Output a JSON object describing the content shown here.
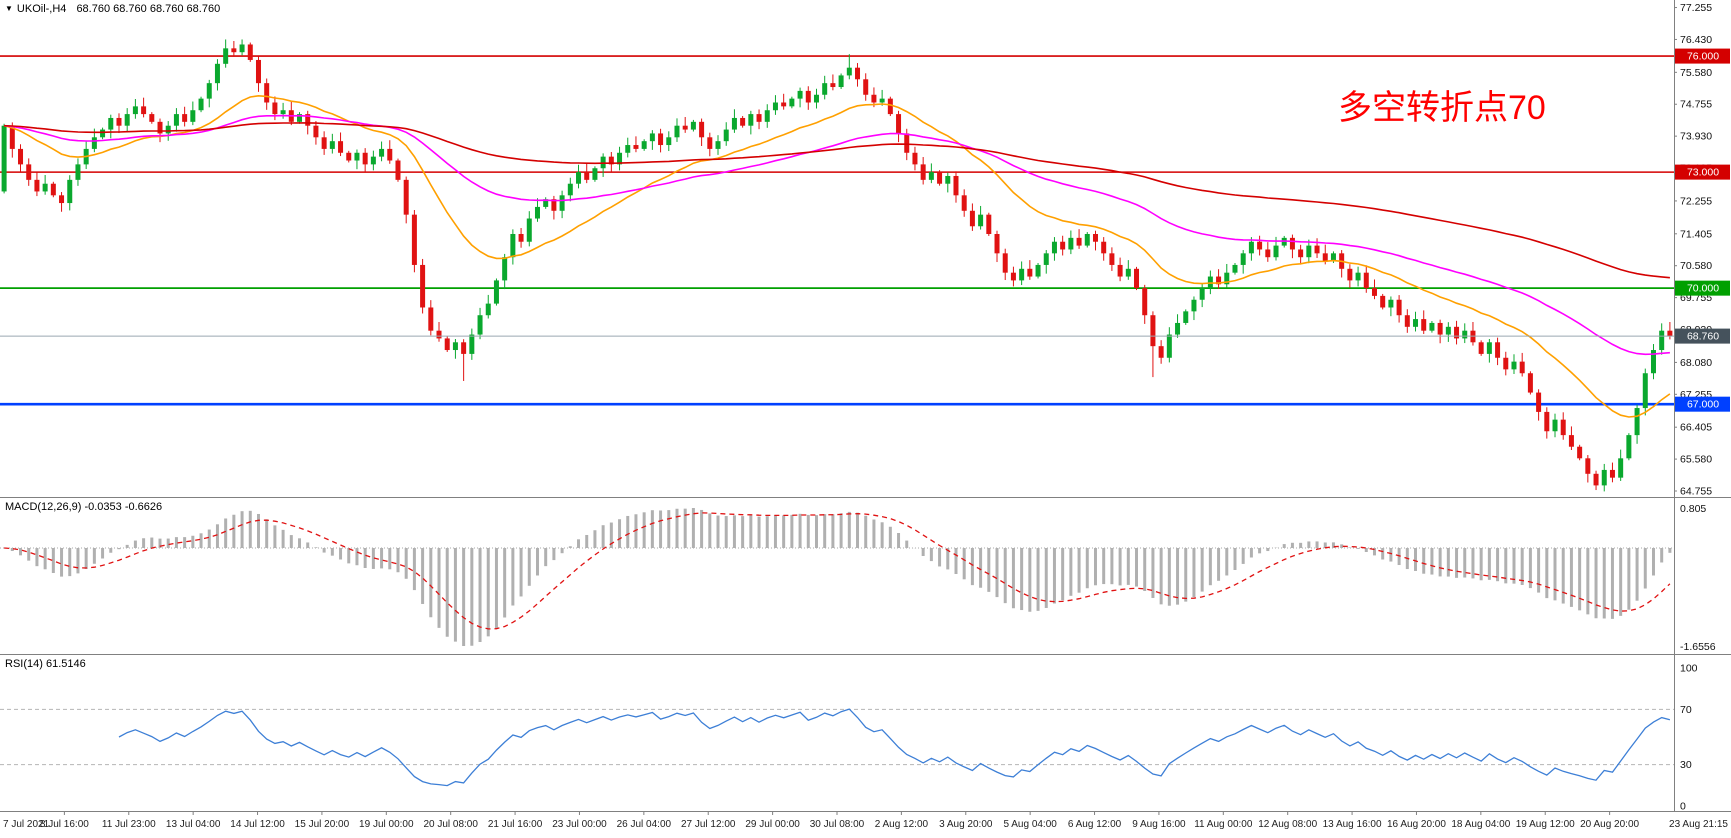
{
  "price_panel": {
    "symbol": "UKOil-,H4",
    "ohlc_text": "68.760 68.760 68.760 68.760",
    "annotation": "多空转折点70",
    "annotation_color": "#ff0000",
    "axis_labels": [
      "77.255",
      "76.430",
      "75.580",
      "74.755",
      "73.930",
      "73.105",
      "72.255",
      "71.405",
      "70.580",
      "69.755",
      "68.930",
      "68.080",
      "67.255",
      "66.405",
      "65.580",
      "64.755"
    ],
    "hlines": [
      {
        "value": 76.0,
        "label": "76.000",
        "color": "#d40000",
        "width": 1.6
      },
      {
        "value": 73.0,
        "label": "73.000",
        "color": "#d40000",
        "width": 1.6
      },
      {
        "value": 70.0,
        "label": "70.000",
        "color": "#00a000",
        "width": 1.8
      },
      {
        "value": 67.0,
        "label": "67.000",
        "color": "#0040ff",
        "width": 2.6
      }
    ],
    "bid": {
      "value": 68.76,
      "label": "68.760",
      "badge_color": "#45525c",
      "line_color": "#9aa7b0"
    }
  },
  "chart_data": {
    "type": "candlestick",
    "symbol": "UKOil-",
    "timeframe": "H4",
    "ylim": [
      64.6,
      77.45
    ],
    "first_open": 72.5,
    "up_color": "#0aa82e",
    "down_color": "#e01212",
    "closes": [
      74.2,
      73.6,
      73.2,
      72.8,
      72.5,
      72.7,
      72.4,
      72.2,
      72.8,
      73.2,
      73.6,
      73.9,
      74.1,
      74.4,
      74.2,
      74.5,
      74.7,
      74.5,
      74.3,
      74.0,
      74.2,
      74.5,
      74.3,
      74.6,
      74.9,
      75.3,
      75.8,
      76.2,
      76.1,
      76.3,
      75.9,
      75.3,
      74.8,
      74.5,
      74.6,
      74.3,
      74.5,
      74.2,
      73.9,
      73.6,
      73.8,
      73.5,
      73.3,
      73.5,
      73.2,
      73.4,
      73.6,
      73.3,
      72.8,
      71.9,
      70.6,
      69.5,
      68.9,
      68.7,
      68.4,
      68.6,
      68.3,
      68.8,
      69.3,
      69.6,
      70.2,
      70.8,
      71.4,
      71.2,
      71.8,
      72.1,
      72.3,
      72.0,
      72.4,
      72.7,
      73.0,
      72.8,
      73.1,
      73.4,
      73.2,
      73.5,
      73.7,
      73.6,
      73.8,
      74.0,
      73.7,
      73.9,
      74.2,
      74.1,
      74.3,
      73.9,
      73.6,
      73.8,
      74.1,
      74.4,
      74.2,
      74.5,
      74.3,
      74.6,
      74.8,
      74.7,
      74.9,
      75.1,
      74.8,
      75.0,
      75.3,
      75.2,
      75.5,
      75.7,
      75.4,
      75.0,
      74.8,
      74.9,
      74.5,
      74.0,
      73.5,
      73.2,
      72.8,
      73.0,
      72.7,
      72.9,
      72.4,
      72.0,
      71.6,
      71.9,
      71.4,
      70.9,
      70.4,
      70.2,
      70.5,
      70.3,
      70.6,
      70.9,
      71.2,
      71.0,
      71.3,
      71.1,
      71.4,
      71.2,
      70.9,
      70.6,
      70.3,
      70.5,
      70.0,
      69.3,
      68.5,
      68.2,
      68.8,
      69.1,
      69.4,
      69.7,
      70.0,
      70.3,
      70.1,
      70.4,
      70.6,
      70.9,
      71.2,
      71.0,
      70.8,
      71.1,
      71.3,
      71.0,
      70.8,
      71.1,
      70.9,
      70.7,
      70.9,
      70.5,
      70.2,
      70.4,
      70.0,
      69.8,
      69.5,
      69.7,
      69.3,
      69.0,
      69.2,
      68.9,
      69.1,
      68.8,
      69.0,
      68.7,
      68.9,
      68.6,
      68.3,
      68.6,
      68.2,
      67.9,
      68.1,
      67.8,
      67.3,
      66.8,
      66.3,
      66.6,
      66.2,
      65.9,
      65.6,
      65.2,
      64.9,
      65.3,
      65.1,
      65.6,
      66.2,
      66.9,
      67.8,
      68.4,
      68.9,
      68.76
    ],
    "wick_overrides": {
      "27": [
        0.23,
        0.1
      ],
      "29": [
        0.13,
        0.08
      ],
      "56": [
        0.08,
        0.7
      ],
      "103": [
        0.35,
        0.1
      ],
      "140": [
        0.1,
        0.8
      ],
      "194": [
        0.08,
        0.12
      ]
    },
    "ma": [
      {
        "period": 21,
        "type": "ema",
        "color": "#ffa000"
      },
      {
        "period": 55,
        "type": "ema",
        "color": "#ff00ff"
      },
      {
        "period": 144,
        "type": "ema",
        "color": "#d40000"
      }
    ]
  },
  "macd_panel": {
    "label": "MACD(12,26,9) -0.0353 -0.6626",
    "params": {
      "fast": 12,
      "slow": 26,
      "signal": 9
    },
    "axis_labels": [
      "0.805",
      "-1.6556"
    ],
    "histogram_color": "#b0b0b0",
    "signal_color": "#e01212"
  },
  "rsi_panel": {
    "label": "RSI(14) 61.5146",
    "period": 14,
    "levels": [
      70,
      30
    ],
    "axis_labels": [
      "100",
      "70",
      "30",
      "0"
    ],
    "line_color": "#3d7fd6"
  },
  "time_axis": {
    "labels": [
      "7 Jul 2021",
      "8 Jul 16:00",
      "11 Jul 23:00",
      "13 Jul 04:00",
      "14 Jul 12:00",
      "15 Jul 20:00",
      "19 Jul 00:00",
      "20 Jul 08:00",
      "21 Jul 16:00",
      "23 Jul 00:00",
      "26 Jul 04:00",
      "27 Jul 12:00",
      "29 Jul 00:00",
      "30 Jul 08:00",
      "2 Aug 12:00",
      "3 Aug 20:00",
      "5 Aug 04:00",
      "6 Aug 12:00",
      "9 Aug 16:00",
      "11 Aug 00:00",
      "12 Aug 08:00",
      "13 Aug 16:00",
      "16 Aug 20:00",
      "18 Aug 04:00",
      "19 Aug 12:00",
      "20 Aug 20:00",
      "23 Aug 21:15"
    ]
  }
}
